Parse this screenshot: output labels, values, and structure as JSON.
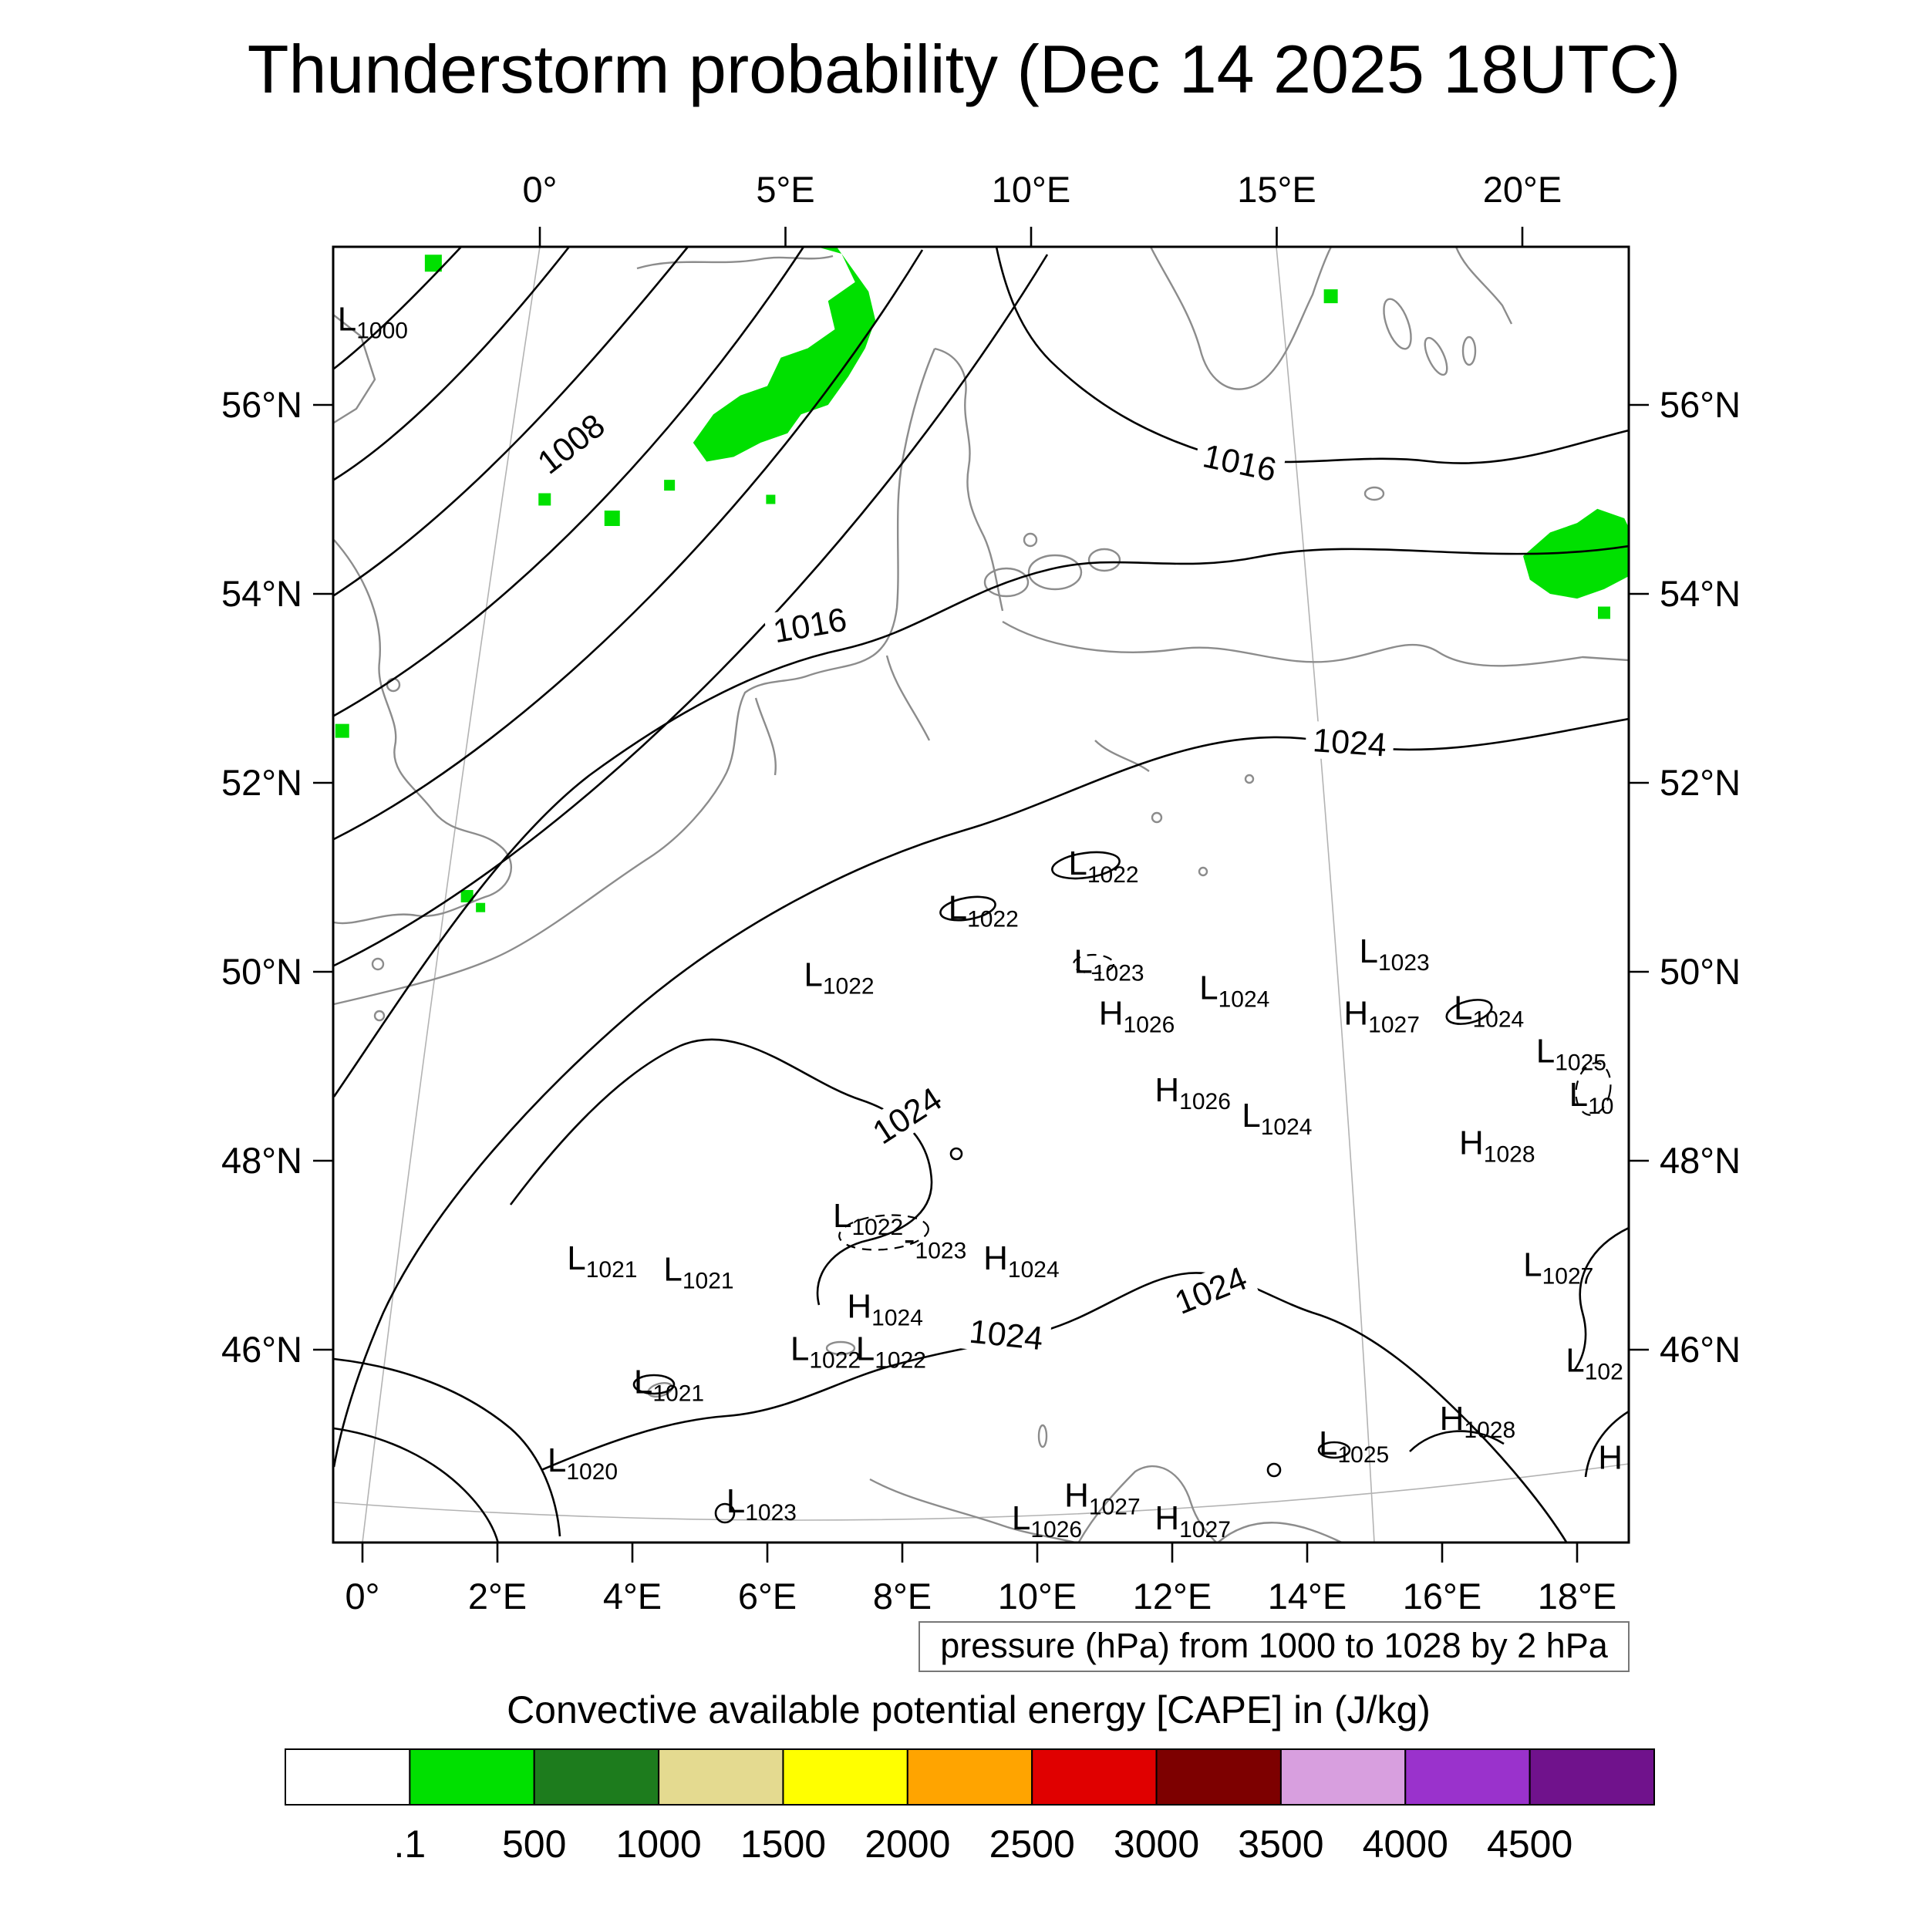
{
  "title": "Thunderstorm probability (Dec 14 2025 18UTC)",
  "pressure_caption": "pressure (hPa) from 1000 to 1028 by 2 hPa",
  "cape_caption": "Convective available potential energy [CAPE] in (J/kg)",
  "colorbar": {
    "colors": [
      "#ffffff",
      "#00e000",
      "#1d7c1d",
      "#e4da90",
      "#ffff00",
      "#ffa400",
      "#e00000",
      "#7d0000",
      "#d89fdf",
      "#9a32cc",
      "#70128c"
    ],
    "labels": [
      ".1",
      "500",
      "1000",
      "1500",
      "2000",
      "2500",
      "3000",
      "3500",
      "4000",
      "4500"
    ]
  },
  "map": {
    "axes": {
      "top": [
        {
          "label": "0°",
          "lon": 0
        },
        {
          "label": "5°E",
          "lon": 5
        },
        {
          "label": "10°E",
          "lon": 10
        },
        {
          "label": "15°E",
          "lon": 15
        },
        {
          "label": "20°E",
          "lon": 20
        }
      ],
      "bottom": [
        {
          "label": "0°",
          "lon": 0
        },
        {
          "label": "2°E",
          "lon": 2
        },
        {
          "label": "4°E",
          "lon": 4
        },
        {
          "label": "6°E",
          "lon": 6
        },
        {
          "label": "8°E",
          "lon": 8
        },
        {
          "label": "10°E",
          "lon": 10
        },
        {
          "label": "12°E",
          "lon": 12
        },
        {
          "label": "14°E",
          "lon": 14
        },
        {
          "label": "16°E",
          "lon": 16
        },
        {
          "label": "18°E",
          "lon": 18
        }
      ],
      "left": [
        {
          "label": "56°N",
          "lat": 56
        },
        {
          "label": "54°N",
          "lat": 54
        },
        {
          "label": "52°N",
          "lat": 52
        },
        {
          "label": "50°N",
          "lat": 50
        },
        {
          "label": "48°N",
          "lat": 48
        },
        {
          "label": "46°N",
          "lat": 46
        }
      ],
      "right": [
        {
          "label": "56°N",
          "lat": 56
        },
        {
          "label": "54°N",
          "lat": 54
        },
        {
          "label": "52°N",
          "lat": 52
        },
        {
          "label": "50°N",
          "lat": 50
        },
        {
          "label": "48°N",
          "lat": 48
        },
        {
          "label": "46°N",
          "lat": 46
        }
      ]
    },
    "isobar_labels": [
      {
        "text": "1008",
        "lon": 3.09,
        "lat": 55.59,
        "rot": -38
      },
      {
        "text": "1016",
        "lon": 13.0,
        "lat": 55.39,
        "rot": 12
      },
      {
        "text": "1016",
        "lon": 6.63,
        "lat": 53.67,
        "rot": -10
      },
      {
        "text": "1024",
        "lon": 14.63,
        "lat": 52.43,
        "rot": 4
      },
      {
        "text": "1024",
        "lon": 8.07,
        "lat": 48.48,
        "rot": -33
      },
      {
        "text": "1024",
        "lon": 9.54,
        "lat": 46.16,
        "rot": 6
      },
      {
        "text": "1024",
        "lon": 12.57,
        "lat": 46.63,
        "rot": -22
      }
    ],
    "pressure_centers": [
      {
        "letter": "L",
        "value": "1000",
        "lon": -0.14,
        "lat": 56.92
      },
      {
        "letter": "L",
        "value": "1022",
        "lon": 6.77,
        "lat": 49.98
      },
      {
        "letter": "L",
        "value": "1022",
        "lon": 8.91,
        "lat": 50.69
      },
      {
        "letter": "L",
        "value": "1022",
        "lon": 10.69,
        "lat": 51.16
      },
      {
        "letter": "L",
        "value": "1023",
        "lon": 10.77,
        "lat": 50.12
      },
      {
        "letter": "L",
        "value": "1024",
        "lon": 12.63,
        "lat": 49.84
      },
      {
        "letter": "H",
        "value": "1026",
        "lon": 11.14,
        "lat": 49.57
      },
      {
        "letter": "H",
        "value": "1026",
        "lon": 11.97,
        "lat": 48.76
      },
      {
        "letter": "L",
        "value": "1024",
        "lon": 13.26,
        "lat": 48.49
      },
      {
        "letter": "L",
        "value": "1023",
        "lon": 15.0,
        "lat": 50.23
      },
      {
        "letter": "H",
        "value": "1027",
        "lon": 14.77,
        "lat": 49.57
      },
      {
        "letter": "L",
        "value": "1024",
        "lon": 16.4,
        "lat": 49.63
      },
      {
        "letter": "L",
        "value": "1025",
        "lon": 17.62,
        "lat": 49.17
      },
      {
        "letter": "L",
        "value": "10",
        "lon": 18.11,
        "lat": 48.71
      },
      {
        "letter": "H",
        "value": "1028",
        "lon": 16.48,
        "lat": 48.2
      },
      {
        "letter": "L",
        "value": "1021",
        "lon": 3.26,
        "lat": 46.98
      },
      {
        "letter": "L",
        "value": "1021",
        "lon": 4.69,
        "lat": 46.86
      },
      {
        "letter": "L",
        "value": "1022",
        "lon": 7.2,
        "lat": 47.43
      },
      {
        "letter": "-",
        "value": "1023",
        "lon": 8.25,
        "lat": 47.18
      },
      {
        "letter": "H",
        "value": "1024",
        "lon": 9.43,
        "lat": 46.98
      },
      {
        "letter": "H",
        "value": "1024",
        "lon": 7.41,
        "lat": 46.47
      },
      {
        "letter": "L",
        "value": "1022",
        "lon": 6.57,
        "lat": 46.02
      },
      {
        "letter": "L",
        "value": "1022",
        "lon": 7.54,
        "lat": 46.02
      },
      {
        "letter": "L",
        "value": "1021",
        "lon": 4.25,
        "lat": 45.67
      },
      {
        "letter": "L",
        "value": "1020",
        "lon": 2.97,
        "lat": 44.84
      },
      {
        "letter": "L",
        "value": "1023",
        "lon": 5.62,
        "lat": 44.41
      },
      {
        "letter": "L",
        "value": "1026",
        "lon": 9.85,
        "lat": 44.23
      },
      {
        "letter": "H",
        "value": "1027",
        "lon": 10.63,
        "lat": 44.47
      },
      {
        "letter": "H",
        "value": "1027",
        "lon": 11.97,
        "lat": 44.23
      },
      {
        "letter": "L",
        "value": "1025",
        "lon": 14.4,
        "lat": 45.02
      },
      {
        "letter": "H",
        "value": "1028",
        "lon": 16.19,
        "lat": 45.28
      },
      {
        "letter": "L",
        "value": "1027",
        "lon": 17.43,
        "lat": 46.91
      },
      {
        "letter": "L",
        "value": "102",
        "lon": 18.06,
        "lat": 45.9
      },
      {
        "letter": "H",
        "value": "",
        "lon": 18.54,
        "lat": 44.87
      }
    ],
    "cape_color": "#00e000",
    "cape_patches": [
      [
        [
          6.6,
          57.7
        ],
        [
          7.1,
          57.6
        ],
        [
          7.3,
          57.3
        ],
        [
          6.9,
          57.1
        ],
        [
          7.0,
          56.8
        ],
        [
          6.6,
          56.6
        ],
        [
          6.2,
          56.5
        ],
        [
          6.0,
          56.2
        ],
        [
          5.6,
          56.1
        ],
        [
          5.2,
          55.9
        ],
        [
          4.9,
          55.6
        ],
        [
          5.1,
          55.4
        ],
        [
          5.5,
          55.45
        ],
        [
          5.9,
          55.6
        ],
        [
          6.3,
          55.7
        ],
        [
          6.5,
          55.9
        ],
        [
          6.9,
          56.0
        ],
        [
          7.2,
          56.3
        ],
        [
          7.45,
          56.6
        ],
        [
          7.6,
          56.9
        ],
        [
          7.5,
          57.2
        ],
        [
          7.2,
          57.5
        ],
        [
          7.0,
          57.7
        ]
      ],
      [
        [
          17.2,
          54.4
        ],
        [
          17.6,
          54.65
        ],
        [
          18.0,
          54.75
        ],
        [
          18.3,
          54.9
        ],
        [
          18.7,
          54.8
        ],
        [
          18.9,
          54.5
        ],
        [
          18.8,
          54.2
        ],
        [
          18.4,
          54.05
        ],
        [
          18.0,
          53.95
        ],
        [
          17.6,
          54.0
        ],
        [
          17.3,
          54.15
        ]
      ]
    ],
    "cape_specks": [
      [
        1.05,
        57.5,
        22
      ],
      [
        14.35,
        57.15,
        18
      ],
      [
        3.7,
        54.8,
        20
      ],
      [
        2.7,
        55.0,
        16
      ],
      [
        -0.3,
        52.55,
        18
      ],
      [
        1.55,
        50.8,
        16
      ],
      [
        1.75,
        50.68,
        12
      ],
      [
        4.55,
        55.15,
        14
      ],
      [
        6.05,
        55.0,
        12
      ],
      [
        18.4,
        53.8,
        16
      ]
    ]
  },
  "chart_data": {
    "type": "contour-map",
    "title": "Thunderstorm probability (Dec 14 2025 18UTC)",
    "valid_time": "Dec 14 2025 18UTC",
    "region": {
      "lon_min": "0°",
      "lon_max": "20°E",
      "lat_min": "44°N",
      "lat_max": "57°N"
    },
    "contours": {
      "variable": "pressure",
      "unit": "hPa",
      "from": 1000,
      "to": 1028,
      "interval": 2,
      "labeled_values": [
        1008,
        1016,
        1024
      ]
    },
    "shading": {
      "variable": "CAPE",
      "unit": "J/kg",
      "thresholds": [
        0.1,
        500,
        1000,
        1500,
        2000,
        2500,
        3000,
        3500,
        4000,
        4500
      ],
      "legend_position": "bottom"
    }
  }
}
